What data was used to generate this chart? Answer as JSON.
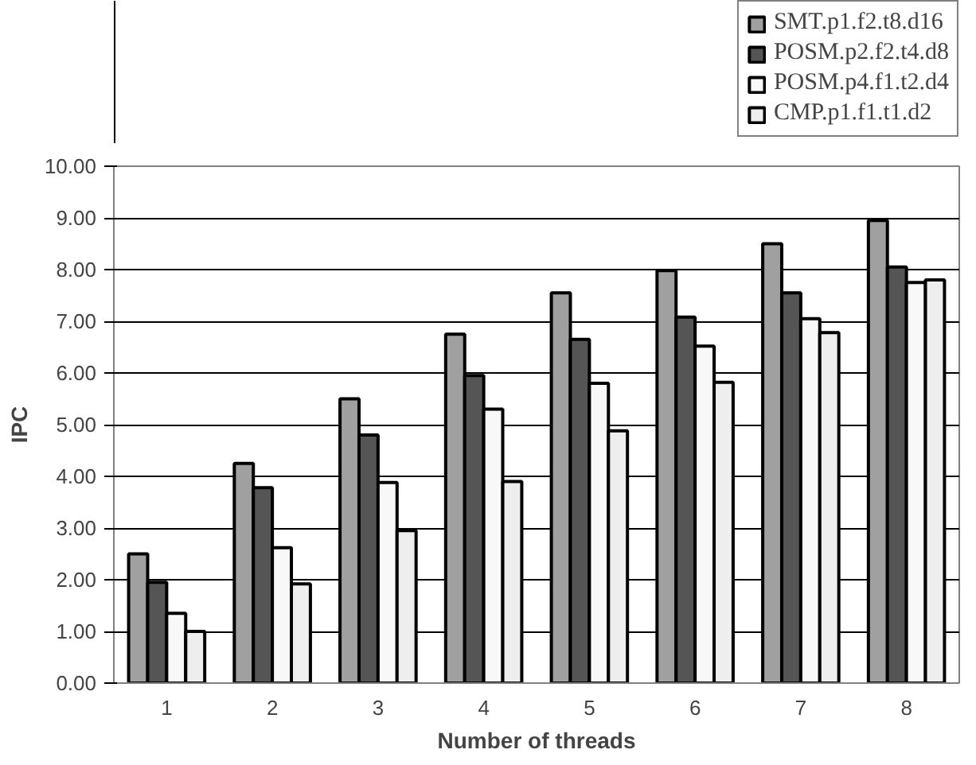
{
  "chart_data": {
    "type": "bar",
    "xlabel": "Number of threads",
    "ylabel": "IPC",
    "categories": [
      "1",
      "2",
      "3",
      "4",
      "5",
      "6",
      "7",
      "8"
    ],
    "series": [
      {
        "name": "SMT.p1.f2.t8.d16",
        "color": "#a0a0a0",
        "values": [
          2.5,
          4.25,
          5.5,
          6.75,
          7.55,
          7.98,
          8.5,
          8.95
        ]
      },
      {
        "name": "POSM.p2.f2.t4.d8",
        "color": "#555555",
        "values": [
          1.95,
          3.78,
          4.8,
          5.95,
          6.65,
          7.08,
          7.55,
          8.05
        ]
      },
      {
        "name": "POSM.p4.f1.t2.d4",
        "color": "#f8f8f8",
        "values": [
          1.35,
          2.62,
          3.88,
          5.3,
          5.8,
          6.52,
          7.05,
          7.75
        ]
      },
      {
        "name": "CMP.p1.f1.t1.d2",
        "color": "#eeeeee",
        "values": [
          1.0,
          1.92,
          2.95,
          3.9,
          4.88,
          5.82,
          6.78,
          7.8
        ]
      }
    ],
    "ylim": [
      0,
      10
    ],
    "yticks": [
      {
        "value": 0,
        "label": "0.00"
      },
      {
        "value": 1,
        "label": "1.00"
      },
      {
        "value": 2,
        "label": "2.00"
      },
      {
        "value": 3,
        "label": "3.00"
      },
      {
        "value": 4,
        "label": "4.00"
      },
      {
        "value": 5,
        "label": "5.00"
      },
      {
        "value": 6,
        "label": "6.00"
      },
      {
        "value": 7,
        "label": "7.00"
      },
      {
        "value": 8,
        "label": "8.00"
      },
      {
        "value": 9,
        "label": "9.00"
      },
      {
        "value": 10,
        "label": "10.00"
      }
    ],
    "grid": "y",
    "legend": "top right"
  }
}
